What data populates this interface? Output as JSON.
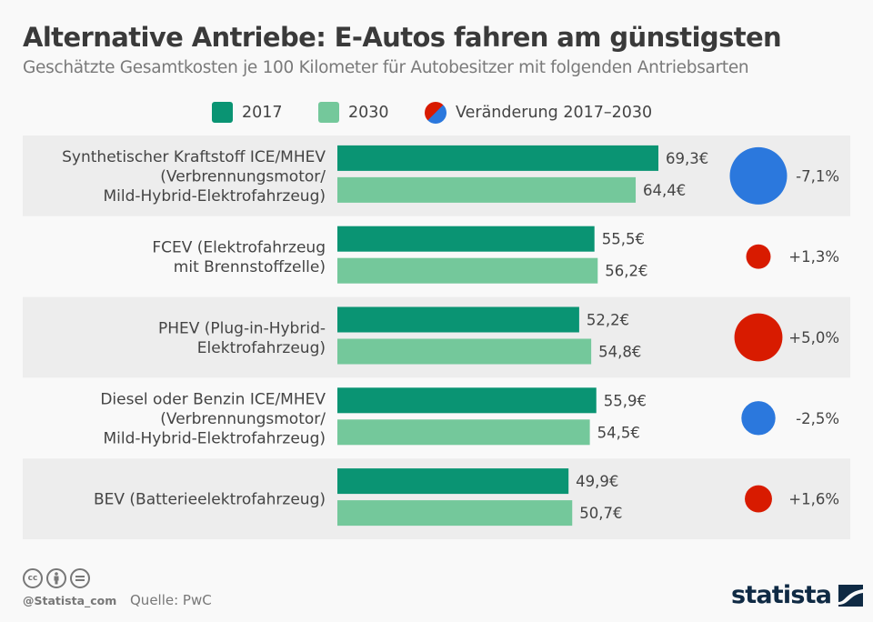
{
  "header": {
    "title": "Alternative Antriebe: E-Autos fahren am günstigsten",
    "subtitle": "Geschätzte Gesamtkosten je 100 Kilometer für Autobesitzer mit folgenden Antriebsarten"
  },
  "legend": {
    "items": [
      {
        "label": "2017",
        "color": "#0a9473"
      },
      {
        "label": "2030",
        "color": "#74c89b"
      },
      {
        "label": "Veränderung 2017–2030",
        "colors": [
          "#d81b00",
          "#2b78dd"
        ]
      }
    ]
  },
  "chart_data": {
    "type": "bar",
    "orientation": "horizontal",
    "title": "Alternative Antriebe: E-Autos fahren am günstigsten",
    "subtitle": "Geschätzte Gesamtkosten je 100 Kilometer für Autobesitzer mit folgenden Antriebsarten",
    "unit": "€",
    "categories": [
      [
        "Synthetischer Kraftstoff ICE/MHEV",
        "(Verbrennungsmotor/",
        "Mild-Hybrid-Elektrofahrzeug)"
      ],
      [
        "FCEV (Elektrofahrzeug",
        "mit Brennstoffzelle)"
      ],
      [
        "PHEV (Plug-in-Hybrid-",
        "Elektrofahrzeug)"
      ],
      [
        "Diesel oder Benzin ICE/MHEV",
        "(Verbrennungsmotor/",
        "Mild-Hybrid-Elektrofahrzeug)"
      ],
      [
        "BEV (Batterieelektrofahrzeug)"
      ]
    ],
    "series": [
      {
        "name": "2017",
        "color": "#0a9473",
        "values": [
          69.3,
          55.5,
          52.2,
          55.9,
          49.9
        ],
        "labels": [
          "69,3€",
          "55,5€",
          "52,2€",
          "55,9€",
          "49,9€"
        ]
      },
      {
        "name": "2030",
        "color": "#74c89b",
        "values": [
          64.4,
          56.2,
          54.8,
          54.5,
          50.7
        ],
        "labels": [
          "64,4€",
          "56,2€",
          "54,8€",
          "54,5€",
          "50,7€"
        ]
      }
    ],
    "change": {
      "name": "Veränderung 2017–2030",
      "values": [
        -7.1,
        1.3,
        5.0,
        -2.5,
        1.6
      ],
      "labels": [
        "-7,1%",
        "+1,3%",
        "+5,0%",
        "-2,5%",
        "+1,6%"
      ],
      "positive_color": "#d81b00",
      "negative_color": "#2b78dd"
    },
    "xlim": [
      0,
      69.3
    ],
    "grid": false,
    "legend_position": "top-center",
    "row_band_colors": [
      "#ededed",
      "#f9f9f9"
    ]
  },
  "footer": {
    "handle": "@Statista_com",
    "source": "Quelle: PwC",
    "license_icons": [
      "cc-icon",
      "by-icon",
      "nd-icon"
    ],
    "brand": "statista"
  }
}
